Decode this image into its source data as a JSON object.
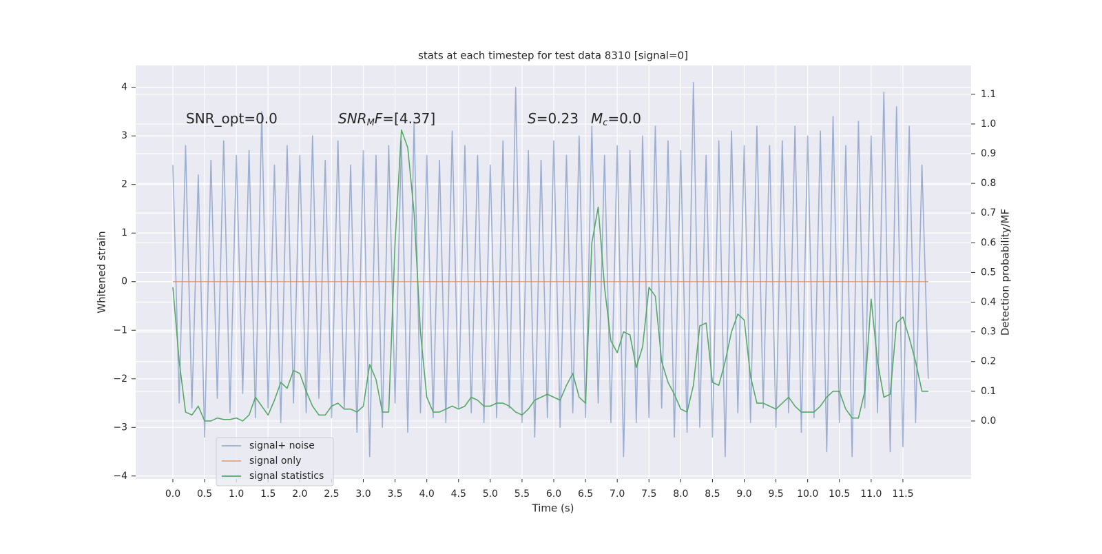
{
  "chart_data": {
    "type": "line",
    "title": "stats at each timestep for test data 8310 [signal=0]",
    "xlabel": "Time (s)",
    "ylabel": "Whitened strain",
    "y2label": "Detection probability/MF",
    "background": "#eaeaf2",
    "grid": true,
    "legend": "lower left",
    "xlim": [
      -0.586,
      12.575
    ],
    "ylim": [
      -4.06,
      4.45
    ],
    "y2lim": [
      -0.195,
      1.197
    ],
    "xticks": [
      {
        "value": 0,
        "label": "0.0"
      },
      0.5,
      {
        "value": 1,
        "label": "1.0"
      },
      1.5,
      {
        "value": 2,
        "label": "2.0"
      },
      2.5,
      {
        "value": 3,
        "label": "3.0"
      },
      3.5,
      {
        "value": 4,
        "label": "4.0"
      },
      4.5,
      {
        "value": 5,
        "label": "5.0"
      },
      5.5,
      {
        "value": 6,
        "label": "6.0"
      },
      6.5,
      {
        "value": 7,
        "label": "7.0"
      },
      7.5,
      {
        "value": 8,
        "label": "8.0"
      },
      8.5,
      {
        "value": 9,
        "label": "9.0"
      },
      9.5,
      {
        "value": 10,
        "label": "10.0"
      },
      10.5,
      {
        "value": 11,
        "label": "11.0"
      },
      11.5
    ],
    "yticks": [
      {
        "value": -4,
        "label": "−4"
      },
      {
        "value": -3,
        "label": "−3"
      },
      {
        "value": -2,
        "label": "−2"
      },
      {
        "value": -1,
        "label": "−1"
      },
      0,
      1,
      2,
      3,
      4
    ],
    "y2ticks": [
      {
        "value": 0,
        "label": "0.0"
      },
      0.1,
      0.2,
      0.3,
      0.4,
      0.5,
      0.6,
      0.7,
      0.8,
      0.9,
      {
        "value": 1,
        "label": "1.0"
      },
      1.1
    ],
    "annotations": [
      [
        {
          "text": "SNR_opt=0.0"
        }
      ],
      [
        {
          "text": "SNR",
          "italic": true
        },
        {
          "text": "M",
          "italic": true,
          "sub": true
        },
        {
          "text": "F",
          "italic": true
        },
        {
          "text": "=[4.37]"
        }
      ],
      [
        {
          "text": "S",
          "italic": true
        },
        {
          "text": "=0.23"
        }
      ],
      [
        {
          "text": "M",
          "italic": true
        },
        {
          "text": "c",
          "italic": true,
          "sub": true
        },
        {
          "text": "=0.0"
        }
      ]
    ],
    "x": [
      0,
      0.1,
      0.2,
      0.3,
      0.4,
      0.5,
      0.6,
      0.7,
      0.8,
      0.9,
      1,
      1.1,
      1.2,
      1.3,
      1.4,
      1.5,
      1.6,
      1.7,
      1.8,
      1.9,
      2,
      2.1,
      2.2,
      2.3,
      2.4,
      2.5,
      2.6,
      2.7,
      2.8,
      2.9,
      3,
      3.1,
      3.2,
      3.3,
      3.4,
      3.5,
      3.6,
      3.7,
      3.8,
      3.9,
      4,
      4.1,
      4.2,
      4.3,
      4.4,
      4.5,
      4.6,
      4.7,
      4.8,
      4.9,
      5,
      5.1,
      5.2,
      5.3,
      5.4,
      5.5,
      5.6,
      5.7,
      5.8,
      5.9,
      6,
      6.1,
      6.2,
      6.3,
      6.4,
      6.5,
      6.6,
      6.7,
      6.8,
      6.9,
      7,
      7.1,
      7.2,
      7.3,
      7.4,
      7.5,
      7.6,
      7.7,
      7.8,
      7.9,
      8,
      8.1,
      8.2,
      8.3,
      8.4,
      8.5,
      8.6,
      8.7,
      8.8,
      8.9,
      9,
      9.1,
      9.2,
      9.3,
      9.4,
      9.5,
      9.6,
      9.7,
      9.8,
      9.9,
      10,
      10.1,
      10.2,
      10.3,
      10.4,
      10.5,
      10.6,
      10.7,
      10.8,
      10.9,
      11,
      11.1,
      11.2,
      11.3,
      11.4,
      11.5,
      11.6,
      11.7,
      11.8,
      11.9
    ],
    "series": [
      {
        "name": "signal+ noise",
        "color": "#4c72b0",
        "opacity": 0.5,
        "values": [
          2.4,
          -2.5,
          2.8,
          -2.6,
          2.2,
          -3.2,
          2.5,
          -2.4,
          2.9,
          -2.7,
          2.6,
          -2.3,
          2.7,
          -2.8,
          3.5,
          -2.6,
          2.4,
          -2.9,
          2.8,
          -2.5,
          2.6,
          -2.7,
          3.0,
          -2.4,
          2.5,
          -2.8,
          2.9,
          -2.6,
          2.4,
          -3.1,
          2.7,
          -3.6,
          2.6,
          -3.0,
          2.8,
          -2.5,
          2.9,
          -3.1,
          3.3,
          -2.7,
          2.6,
          -2.8,
          2.5,
          -2.9,
          3.1,
          -2.6,
          2.8,
          -2.7,
          2.6,
          -2.9,
          2.4,
          -2.8,
          2.9,
          -2.6,
          4.0,
          -2.9,
          2.7,
          -3.2,
          2.5,
          -2.8,
          2.9,
          -3.0,
          2.6,
          -2.7,
          3.0,
          -2.8,
          3.2,
          -2.5,
          2.6,
          -2.9,
          2.8,
          -3.6,
          2.7,
          -2.9,
          3.0,
          -2.8,
          3.2,
          -2.6,
          2.9,
          -3.2,
          2.7,
          -3.1,
          4.1,
          -3.0,
          2.6,
          -3.2,
          2.9,
          -3.6,
          3.1,
          -2.7,
          2.8,
          -2.9,
          3.2,
          -2.6,
          2.8,
          -3.0,
          2.9,
          -2.7,
          3.2,
          -3.1,
          3.0,
          -2.8,
          3.1,
          -3.5,
          3.4,
          -2.9,
          2.8,
          -3.6,
          3.3,
          -2.6,
          3.0,
          -2.7,
          3.9,
          -3.5,
          3.6,
          -3.4,
          3.2,
          -2.9,
          2.4,
          -2.0
        ]
      },
      {
        "name": "signal only",
        "color": "#dd8452",
        "opacity": 0.7,
        "values": [
          0,
          0,
          0,
          0,
          0,
          0,
          0,
          0,
          0,
          0,
          0,
          0,
          0,
          0,
          0,
          0,
          0,
          0,
          0,
          0,
          0,
          0,
          0,
          0,
          0,
          0,
          0,
          0,
          0,
          0,
          0,
          0,
          0,
          0,
          0,
          0,
          0,
          0,
          0,
          0,
          0,
          0,
          0,
          0,
          0,
          0,
          0,
          0,
          0,
          0,
          0,
          0,
          0,
          0,
          0,
          0,
          0,
          0,
          0,
          0,
          0,
          0,
          0,
          0,
          0,
          0,
          0,
          0,
          0,
          0,
          0,
          0,
          0,
          0,
          0,
          0,
          0,
          0,
          0,
          0,
          0,
          0,
          0,
          0,
          0,
          0,
          0,
          0,
          0,
          0,
          0,
          0,
          0,
          0,
          0,
          0,
          0,
          0,
          0,
          0,
          0,
          0,
          0,
          0,
          0,
          0,
          0,
          0,
          0,
          0,
          0,
          0,
          0,
          0,
          0,
          0,
          0,
          0,
          0,
          0
        ]
      },
      {
        "name": "signal statistics",
        "color": "#55a868",
        "opacity": 1,
        "axis": "y2",
        "values": [
          0.45,
          0.2,
          0.03,
          0.02,
          0.05,
          0,
          0,
          0.01,
          0.005,
          0.005,
          0.01,
          0,
          0.02,
          0.08,
          0.05,
          0.02,
          0.07,
          0.13,
          0.11,
          0.17,
          0.16,
          0.1,
          0.05,
          0.02,
          0.02,
          0.05,
          0.06,
          0.04,
          0.04,
          0.03,
          0.05,
          0.19,
          0.14,
          0.03,
          0.03,
          0.6,
          0.98,
          0.92,
          0.7,
          0.3,
          0.08,
          0.03,
          0.03,
          0.04,
          0.05,
          0.04,
          0.05,
          0.08,
          0.07,
          0.05,
          0.05,
          0.06,
          0.06,
          0.05,
          0.03,
          0.02,
          0.04,
          0.07,
          0.08,
          0.09,
          0.08,
          0.07,
          0.12,
          0.16,
          0.08,
          0.06,
          0.6,
          0.72,
          0.45,
          0.27,
          0.23,
          0.3,
          0.29,
          0.18,
          0.25,
          0.45,
          0.42,
          0.2,
          0.13,
          0.09,
          0.04,
          0.03,
          0.12,
          0.32,
          0.33,
          0.13,
          0.12,
          0.2,
          0.3,
          0.36,
          0.34,
          0.15,
          0.06,
          0.06,
          0.05,
          0.04,
          0.06,
          0.08,
          0.05,
          0.03,
          0.03,
          0.03,
          0.05,
          0.08,
          0.1,
          0.1,
          0.04,
          0.01,
          0.01,
          0.1,
          0.41,
          0.2,
          0.08,
          0.09,
          0.33,
          0.35,
          0.28,
          0.2,
          0.1,
          0.1
        ]
      }
    ]
  }
}
